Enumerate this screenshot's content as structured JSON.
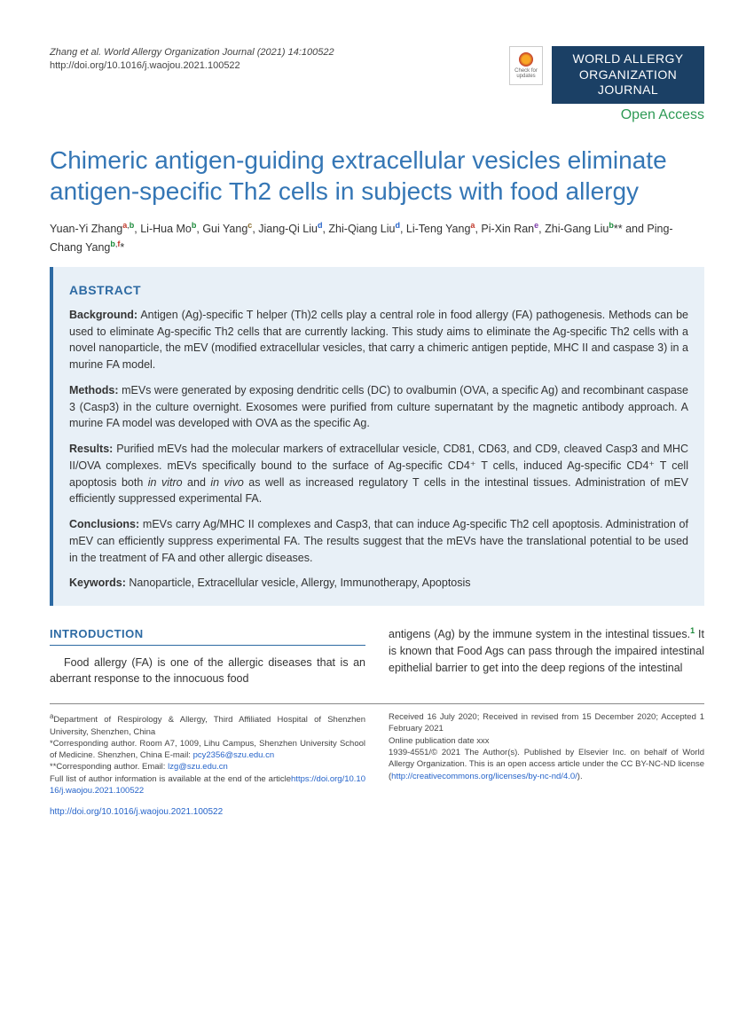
{
  "header": {
    "citation_line1": "Zhang et al. World Allergy Organization Journal (2021) 14:100522",
    "doi_url": "http://doi.org/10.1016/j.waojou.2021.100522",
    "check_updates_label": "Check for updates",
    "journal_line1": "WORLD ALLERGY",
    "journal_line2": "ORGANIZATION",
    "journal_line3": "JOURNAL",
    "open_access": "Open Access"
  },
  "title": "Chimeric antigen-guiding extracellular vesicles eliminate antigen-specific Th2 cells in subjects with food allergy",
  "authors_html": "Yuan-Yi Zhang<sup class='aff-a'>a</sup><sup>,</sup><sup class='aff-b'>b</sup>, Li-Hua Mo<sup class='aff-b'>b</sup>, Gui Yang<sup class='aff-c'>c</sup>, Jiang-Qi Liu<sup class='aff-d'>d</sup>, Zhi-Qiang Liu<sup class='aff-d'>d</sup>, Li-Teng Yang<sup class='aff-a'>a</sup>, Pi-Xin Ran<sup class='aff-e'>e</sup>, Zhi-Gang Liu<sup class='aff-b'>b</sup>** and Ping-Chang Yang<sup class='aff-b'>b</sup><sup>,</sup><sup class='aff-f'>f</sup>*",
  "abstract": {
    "heading": "ABSTRACT",
    "background_label": "Background:",
    "background": "Antigen (Ag)-specific T helper (Th)2 cells play a central role in food allergy (FA) pathogenesis. Methods can be used to eliminate Ag-specific Th2 cells that are currently lacking. This study aims to eliminate the Ag-specific Th2 cells with a novel nanoparticle, the mEV (modified extracellular vesicles, that carry a chimeric antigen peptide, MHC II and caspase 3) in a murine FA model.",
    "methods_label": "Methods:",
    "methods": "mEVs were generated by exposing dendritic cells (DC) to ovalbumin (OVA, a specific Ag) and recombinant caspase 3 (Casp3) in the culture overnight. Exosomes were purified from culture supernatant by the magnetic antibody approach. A murine FA model was developed with OVA as the specific Ag.",
    "results_label": "Results:",
    "results": "Purified mEVs had the molecular markers of extracellular vesicle, CD81, CD63, and CD9, cleaved Casp3 and MHC II/OVA complexes. mEVs specifically bound to the surface of Ag-specific CD4⁺ T cells, induced Ag-specific CD4⁺ T cell apoptosis both in vitro and in vivo as well as increased regulatory T cells in the intestinal tissues. Administration of mEV efficiently suppressed experimental FA.",
    "conclusions_label": "Conclusions:",
    "conclusions": "mEVs carry Ag/MHC II complexes and Casp3, that can induce Ag-specific Th2 cell apoptosis. Administration of mEV can efficiently suppress experimental FA. The results suggest that the mEVs have the translational potential to be used in the treatment of FA and other allergic diseases.",
    "keywords_label": "Keywords:",
    "keywords": "Nanoparticle, Extracellular vesicle, Allergy, Immunotherapy, Apoptosis"
  },
  "intro": {
    "heading": "INTRODUCTION",
    "col1": "Food allergy (FA) is one of the allergic diseases that is an aberrant response to the innocuous food",
    "col2_a": "antigens (Ag) by the immune system in the intestinal tissues.",
    "col2_b": " It is known that Food Ags can pass through the impaired intestinal epithelial barrier to get into the deep regions of the intestinal"
  },
  "footer": {
    "left": {
      "aff_a": "Department of Respirology & Allergy, Third Affiliated Hospital of Shenzhen University, Shenzhen, China",
      "corr1_label": "*Corresponding author. Room A7, 1009, Lihu Campus, Shenzhen University School of Medicine. Shenzhen, China E-mail: ",
      "corr1_email": "pcy2356@szu.edu.cn",
      "corr2_label": "**Corresponding author. Email: ",
      "corr2_email": "lzg@szu.edu.cn",
      "full_list": "Full list of author information is available at the end of the article",
      "full_list_url": "https://doi.org/10.1016/j.waojou.2021.100522"
    },
    "right": {
      "received": "Received 16 July 2020; Received in revised from 15 December 2020; Accepted 1 February 2021",
      "online": "Online publication date xxx",
      "copyright": "1939-4551/© 2021 The Author(s). Published by Elsevier Inc. on behalf of World Allergy Organization. This is an open access article under the CC BY-NC-ND license (",
      "license_url": "http://creativecommons.org/licenses/by-nc-nd/4.0/",
      "close": ")."
    }
  },
  "bottom_link": "http://doi.org/10.1016/j.waojou.2021.100522",
  "colors": {
    "journal_bg": "#1b4065",
    "accent_blue": "#3476b5",
    "abstract_bg": "#e8f0f7",
    "open_access": "#2e9a55",
    "link": "#2563c9"
  }
}
